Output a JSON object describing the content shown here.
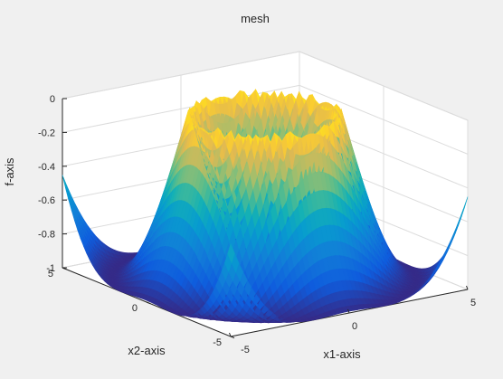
{
  "chart_data": {
    "type": "surface",
    "title": "mesh",
    "xlabel": "x1-axis",
    "ylabel": "x2-axis",
    "zlabel": "f-axis",
    "xlim": [
      -5,
      5
    ],
    "ylim": [
      -5,
      5
    ],
    "zlim": [
      -1,
      0
    ],
    "xticks": [
      -5,
      0,
      5
    ],
    "yticks": [
      -5,
      0,
      5
    ],
    "zticks": [
      0,
      -0.2,
      -0.4,
      -0.6,
      -0.8,
      -1
    ],
    "function": "f(x1,x2) = -|cos(0.6 * sqrt(x1^2 + x2^2))|",
    "grid": true,
    "colormap": "parula",
    "colors": {
      "background": "#f0f0f0",
      "axes_face": "#ffffff",
      "grid": "#dcdcdc",
      "axis_line": "#262626"
    }
  }
}
